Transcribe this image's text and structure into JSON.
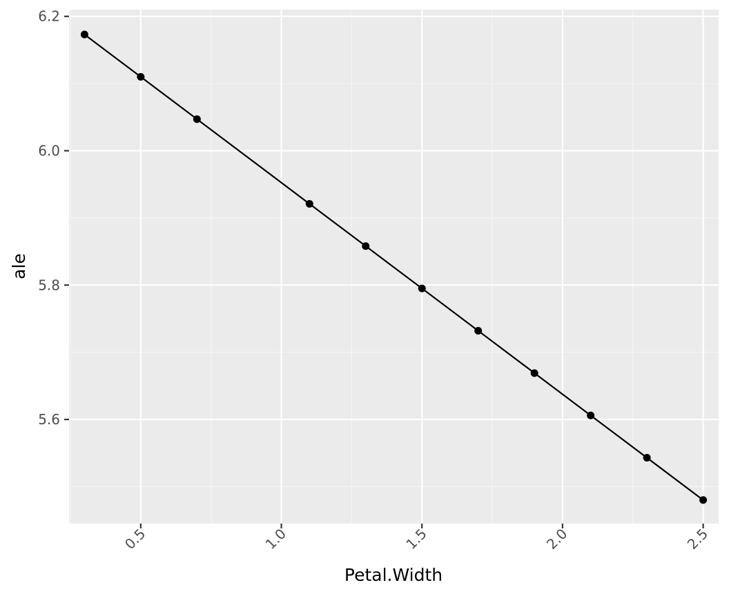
{
  "colors": {
    "panel_background": "#ebebeb",
    "grid_major": "#ffffff",
    "grid_minor": "#f5f5f5",
    "tick_text": "#4d4d4d",
    "axis_tick": "#333333",
    "series": "#000000"
  },
  "chart_data": {
    "type": "line",
    "title": "",
    "xlabel": "Petal.Width",
    "ylabel": "ale",
    "xlim": [
      0.245,
      2.555
    ],
    "ylim": [
      5.445,
      6.21
    ],
    "x_ticks": [
      0.5,
      1.0,
      1.5,
      2.0,
      2.5
    ],
    "x_tick_labels": [
      "0.5",
      "1.0",
      "1.5",
      "2.0",
      "2.5"
    ],
    "y_ticks": [
      5.6,
      5.8,
      6.0,
      6.2
    ],
    "y_tick_labels": [
      "5.6",
      "5.8",
      "6.0",
      "6.2"
    ],
    "grid": true,
    "legend": "none",
    "series": [
      {
        "x": [
          0.3,
          0.5,
          0.7,
          1.1,
          1.3,
          1.5,
          1.7,
          1.9,
          2.1,
          2.3,
          2.5
        ],
        "y": [
          6.173,
          6.11,
          6.047,
          5.921,
          5.858,
          5.795,
          5.732,
          5.669,
          5.606,
          5.543,
          5.48
        ]
      }
    ]
  }
}
